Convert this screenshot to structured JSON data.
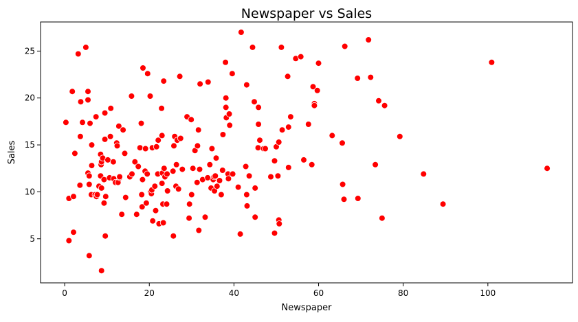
{
  "chart_data": {
    "type": "scatter",
    "title": "Newspaper vs Sales",
    "xlabel": "Newspaper",
    "ylabel": "Sales",
    "xlim": [
      -5.7,
      120.0
    ],
    "ylim": [
      0.3,
      28.1
    ],
    "xticks": [
      0,
      20,
      40,
      60,
      80,
      100
    ],
    "yticks": [
      5,
      10,
      15,
      20,
      25
    ],
    "grid": false,
    "legend": "none",
    "marker_color": "#ff0000",
    "marker_edge_color": "#ffffff",
    "points": [
      [
        0.3,
        17.4
      ],
      [
        1.0,
        9.3
      ],
      [
        1.0,
        4.8
      ],
      [
        1.8,
        20.7
      ],
      [
        2.1,
        5.7
      ],
      [
        2.1,
        9.5
      ],
      [
        2.4,
        14.1
      ],
      [
        3.2,
        24.7
      ],
      [
        3.6,
        10.7
      ],
      [
        3.7,
        15.9
      ],
      [
        3.8,
        19.6
      ],
      [
        4.2,
        17.4
      ],
      [
        5.0,
        25.4
      ],
      [
        5.5,
        20.7
      ],
      [
        5.5,
        19.8
      ],
      [
        5.5,
        12.0
      ],
      [
        5.8,
        11.7
      ],
      [
        5.8,
        10.8
      ],
      [
        5.8,
        3.2
      ],
      [
        6.0,
        17.3
      ],
      [
        6.3,
        9.7
      ],
      [
        6.4,
        15.0
      ],
      [
        6.4,
        12.8
      ],
      [
        7.2,
        9.7
      ],
      [
        7.4,
        18.0
      ],
      [
        7.5,
        9.5
      ],
      [
        7.7,
        9.7
      ],
      [
        8.1,
        10.6
      ],
      [
        8.5,
        14.0
      ],
      [
        8.5,
        11.7
      ],
      [
        8.6,
        12.9
      ],
      [
        8.7,
        13.2
      ],
      [
        8.7,
        10.4
      ],
      [
        8.7,
        1.6
      ],
      [
        9.0,
        13.6
      ],
      [
        9.3,
        8.8
      ],
      [
        9.3,
        11.3
      ],
      [
        9.5,
        18.4
      ],
      [
        9.5,
        15.6
      ],
      [
        9.6,
        5.3
      ],
      [
        9.7,
        9.5
      ],
      [
        10.2,
        13.4
      ],
      [
        10.6,
        11.5
      ],
      [
        10.8,
        15.9
      ],
      [
        10.9,
        18.9
      ],
      [
        11.5,
        13.2
      ],
      [
        11.6,
        11.4
      ],
      [
        12.0,
        11.0
      ],
      [
        12.3,
        15.2
      ],
      [
        12.4,
        14.9
      ],
      [
        12.6,
        11.0
      ],
      [
        12.8,
        17.0
      ],
      [
        13.0,
        11.5
      ],
      [
        13.0,
        11.6
      ],
      [
        13.5,
        7.6
      ],
      [
        13.8,
        16.6
      ],
      [
        14.2,
        14.1
      ],
      [
        14.4,
        9.4
      ],
      [
        15.4,
        11.6
      ],
      [
        15.8,
        20.2
      ],
      [
        15.9,
        11.9
      ],
      [
        16.6,
        13.2
      ],
      [
        17.0,
        7.6
      ],
      [
        17.4,
        12.7
      ],
      [
        17.8,
        14.7
      ],
      [
        18.1,
        17.3
      ],
      [
        18.2,
        9.7
      ],
      [
        18.3,
        8.4
      ],
      [
        18.4,
        11.3
      ],
      [
        18.5,
        23.2
      ],
      [
        19.0,
        12.2
      ],
      [
        19.1,
        14.6
      ],
      [
        19.3,
        8.8
      ],
      [
        19.5,
        11.9
      ],
      [
        19.6,
        22.6
      ],
      [
        20.2,
        20.2
      ],
      [
        20.3,
        10.0
      ],
      [
        20.5,
        9.8
      ],
      [
        20.6,
        10.2
      ],
      [
        20.7,
        14.7
      ],
      [
        20.8,
        6.9
      ],
      [
        21.3,
        10.6
      ],
      [
        21.5,
        8.0
      ],
      [
        21.7,
        14.8
      ],
      [
        22.0,
        11.9
      ],
      [
        22.1,
        15.5
      ],
      [
        22.3,
        6.6
      ],
      [
        22.9,
        18.9
      ],
      [
        23.0,
        16.0
      ],
      [
        23.0,
        10.9
      ],
      [
        23.1,
        12.0
      ],
      [
        23.2,
        8.7
      ],
      [
        23.3,
        6.7
      ],
      [
        23.4,
        21.8
      ],
      [
        23.5,
        12.5
      ],
      [
        23.7,
        11.6
      ],
      [
        24.1,
        8.7
      ],
      [
        24.2,
        11.9
      ],
      [
        24.3,
        10.1
      ],
      [
        25.6,
        12.2
      ],
      [
        25.7,
        5.3
      ],
      [
        25.8,
        14.9
      ],
      [
        26.0,
        15.9
      ],
      [
        26.3,
        10.6
      ],
      [
        26.4,
        12.9
      ],
      [
        26.6,
        15.5
      ],
      [
        26.9,
        10.3
      ],
      [
        27.2,
        22.3
      ],
      [
        27.4,
        15.7
      ],
      [
        27.8,
        12.4
      ],
      [
        28.9,
        18.0
      ],
      [
        29.4,
        7.2
      ],
      [
        29.5,
        8.7
      ],
      [
        29.9,
        17.7
      ],
      [
        30.0,
        9.7
      ],
      [
        30.3,
        12.5
      ],
      [
        30.8,
        14.4
      ],
      [
        31.3,
        11.0
      ],
      [
        31.4,
        14.9
      ],
      [
        31.6,
        16.6
      ],
      [
        31.7,
        5.9
      ],
      [
        31.9,
        12.4
      ],
      [
        32.0,
        21.5
      ],
      [
        32.6,
        11.3
      ],
      [
        33.2,
        7.3
      ],
      [
        33.8,
        11.5
      ],
      [
        33.9,
        21.7
      ],
      [
        34.3,
        12.9
      ],
      [
        34.6,
        10.4
      ],
      [
        34.8,
        14.6
      ],
      [
        35.1,
        11.3
      ],
      [
        35.3,
        11.6
      ],
      [
        35.4,
        10.1
      ],
      [
        35.6,
        11.7
      ],
      [
        35.8,
        13.6
      ],
      [
        36.0,
        10.6
      ],
      [
        36.6,
        11.2
      ],
      [
        37.0,
        9.7
      ],
      [
        37.3,
        12.3
      ],
      [
        37.4,
        16.1
      ],
      [
        38.0,
        23.8
      ],
      [
        38.1,
        19.0
      ],
      [
        38.1,
        20.0
      ],
      [
        38.2,
        17.9
      ],
      [
        38.6,
        11.9
      ],
      [
        38.7,
        11.4
      ],
      [
        38.9,
        18.3
      ],
      [
        39.0,
        17.1
      ],
      [
        39.6,
        22.6
      ],
      [
        39.7,
        11.9
      ],
      [
        41.0,
        10.5
      ],
      [
        41.5,
        5.5
      ],
      [
        41.7,
        27.0
      ],
      [
        42.8,
        12.7
      ],
      [
        43.0,
        9.7
      ],
      [
        43.0,
        21.4
      ],
      [
        43.1,
        8.5
      ],
      [
        43.6,
        11.7
      ],
      [
        44.4,
        25.4
      ],
      [
        44.8,
        19.6
      ],
      [
        45.0,
        10.4
      ],
      [
        45.0,
        7.3
      ],
      [
        45.7,
        14.7
      ],
      [
        45.8,
        17.2
      ],
      [
        45.8,
        19.0
      ],
      [
        46.1,
        15.5
      ],
      [
        47.0,
        14.6
      ],
      [
        47.4,
        14.6
      ],
      [
        48.7,
        11.6
      ],
      [
        49.6,
        13.3
      ],
      [
        49.6,
        5.6
      ],
      [
        50.0,
        14.8
      ],
      [
        50.4,
        11.7
      ],
      [
        50.6,
        15.3
      ],
      [
        50.6,
        7.0
      ],
      [
        50.7,
        6.6
      ],
      [
        51.2,
        25.4
      ],
      [
        51.4,
        16.6
      ],
      [
        52.7,
        22.3
      ],
      [
        52.9,
        16.9
      ],
      [
        52.9,
        12.6
      ],
      [
        53.4,
        18.0
      ],
      [
        54.6,
        24.2
      ],
      [
        55.8,
        24.4
      ],
      [
        56.5,
        13.4
      ],
      [
        57.6,
        17.2
      ],
      [
        58.4,
        12.9
      ],
      [
        58.7,
        21.2
      ],
      [
        59.0,
        19.4
      ],
      [
        59.0,
        19.2
      ],
      [
        59.7,
        20.8
      ],
      [
        60.0,
        23.7
      ],
      [
        63.2,
        16.0
      ],
      [
        65.6,
        15.2
      ],
      [
        65.7,
        10.8
      ],
      [
        66.0,
        9.2
      ],
      [
        66.2,
        25.5
      ],
      [
        69.2,
        22.1
      ],
      [
        69.3,
        9.3
      ],
      [
        71.8,
        26.2
      ],
      [
        72.3,
        22.2
      ],
      [
        73.4,
        12.9
      ],
      [
        74.2,
        19.7
      ],
      [
        75.0,
        7.2
      ],
      [
        75.6,
        19.2
      ],
      [
        79.2,
        15.9
      ],
      [
        84.8,
        11.9
      ],
      [
        89.4,
        8.7
      ],
      [
        100.9,
        23.8
      ],
      [
        114.0,
        12.5
      ]
    ]
  }
}
